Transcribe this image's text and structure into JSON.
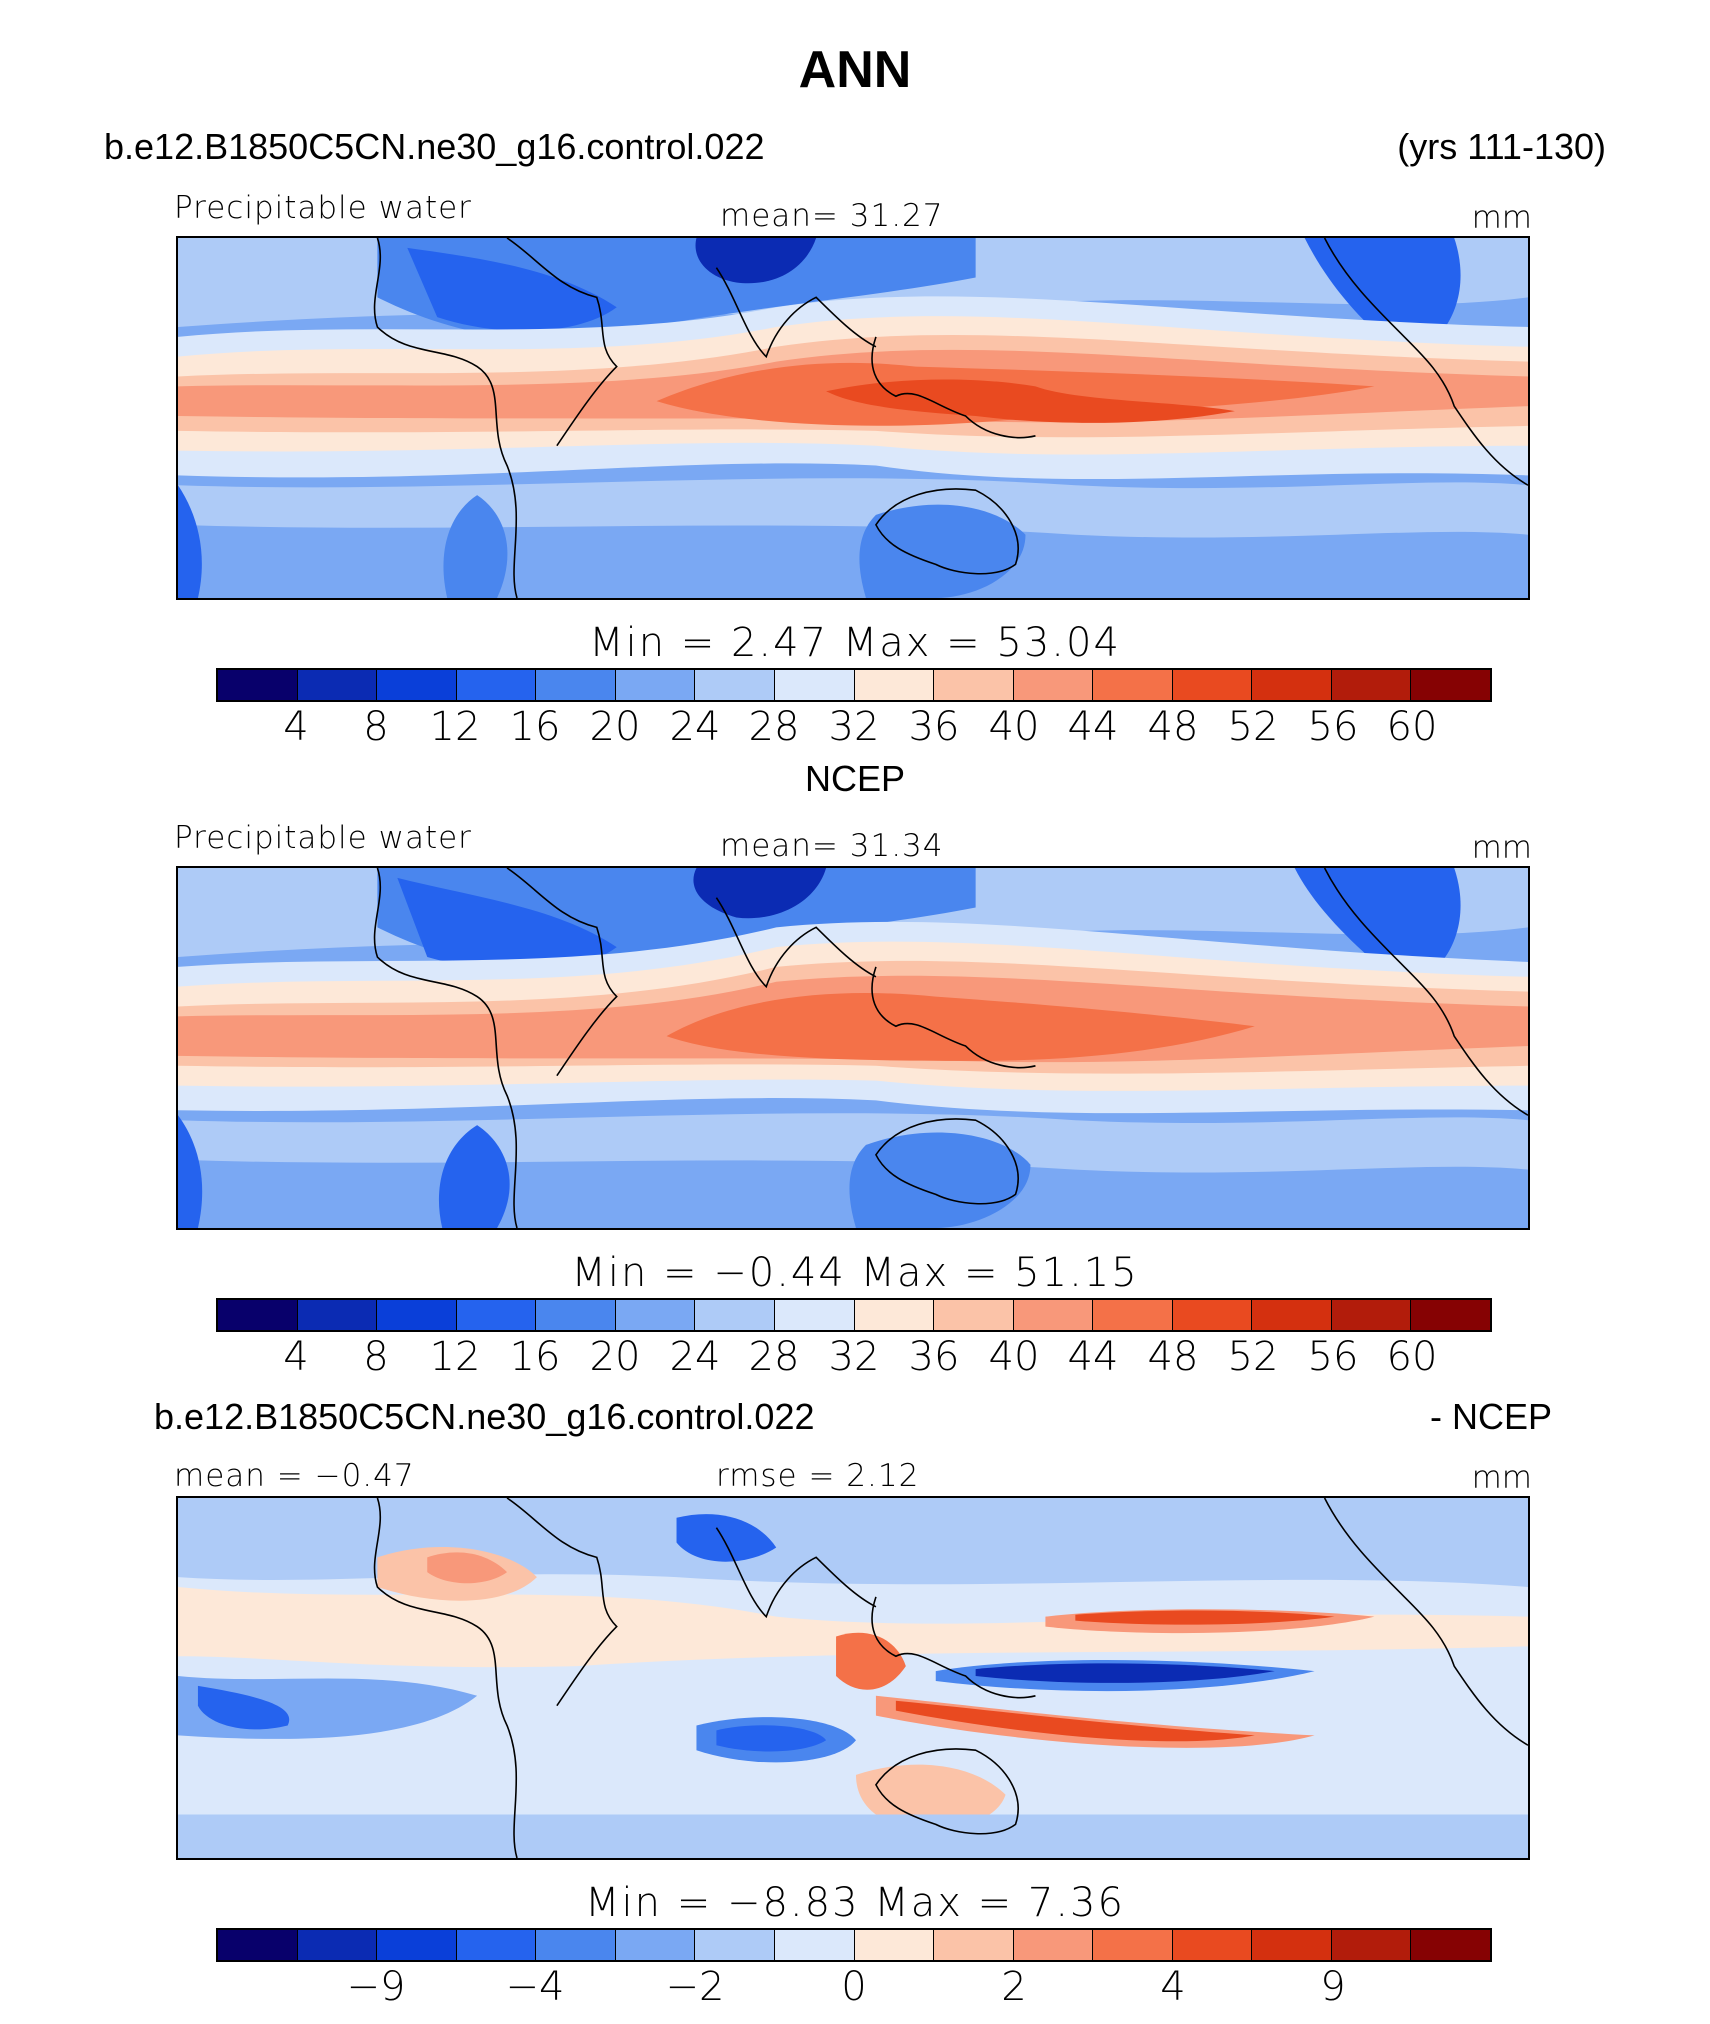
{
  "title": "ANN",
  "colors": [
    "#08006b",
    "#0b2bb3",
    "#0a3fd9",
    "#2563ee",
    "#4a86ee",
    "#7aa8f3",
    "#aecbf7",
    "#dbe8fb",
    "#fde8d8",
    "#fbc3a8",
    "#f8987a",
    "#f47148",
    "#e94a20",
    "#d4300f",
    "#b21c0b",
    "#860203"
  ],
  "land_color_hint": "contour map, coastlines in black",
  "panels": [
    {
      "id": "model",
      "header_left": "b.e12.B1850C5CN.ne30_g16.control.022",
      "header_right": "(yrs 111-130)",
      "variable": "Precipitable  water",
      "mean": "mean=   31.27",
      "units": "mm",
      "minmax": "Min  =     2.47  Max  =    53.04",
      "ticks": [
        "4",
        "8",
        "12",
        "16",
        "20",
        "24",
        "28",
        "32",
        "36",
        "40",
        "44",
        "48",
        "52",
        "56",
        "60"
      ]
    },
    {
      "id": "obs",
      "header_center": "NCEP",
      "variable": "Precipitable  water",
      "mean": "mean=   31.34",
      "units": "mm",
      "minmax": "Min  =    −0.44  Max  =    51.15",
      "ticks": [
        "4",
        "8",
        "12",
        "16",
        "20",
        "24",
        "28",
        "32",
        "36",
        "40",
        "44",
        "48",
        "52",
        "56",
        "60"
      ]
    },
    {
      "id": "diff",
      "header_left": "b.e12.B1850C5CN.ne30_g16.control.022",
      "header_right": "- NCEP",
      "mean": "mean  =   −0.47",
      "rmse": "rmse  =     2.12",
      "units": "mm",
      "minmax": "Min  =    −8.83  Max  =     7.36",
      "ticks": [
        "−9",
        "−4",
        "−2",
        "0",
        "2",
        "4",
        "9"
      ]
    }
  ]
}
